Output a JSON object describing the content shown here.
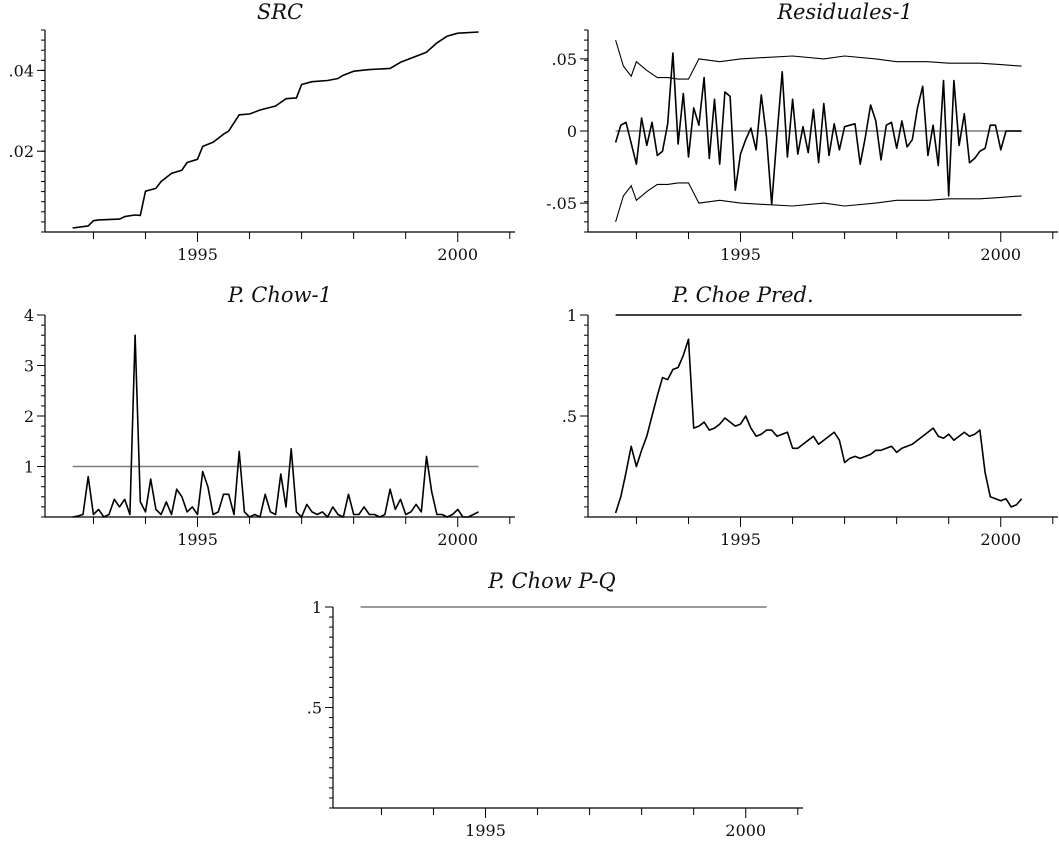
{
  "colors": {
    "series": "#000000",
    "reference": "#000000",
    "reference_gray": "#7a7a7a"
  },
  "chart_data": [
    {
      "type": "line",
      "title": "SRC",
      "xlabel": "",
      "ylabel": "",
      "xlim": [
        1992.3,
        2001.1
      ],
      "ylim": [
        0,
        0.05
      ],
      "x_ticks": [
        1995,
        2000
      ],
      "x_tick_labels": [
        "1995",
        "2000"
      ],
      "y_ticks": [
        0.02,
        0.04
      ],
      "y_tick_labels": [
        ".02",
        ".04"
      ],
      "series": [
        {
          "x": [
            1992.6,
            1992.9,
            1993.0,
            1993.1,
            1993.5,
            1993.6,
            1993.8,
            1993.9,
            1994.0,
            1994.2,
            1994.3,
            1994.5,
            1994.7,
            1994.8,
            1995.0,
            1995.1,
            1995.3,
            1995.5,
            1995.6,
            1995.8,
            1996.0,
            1996.2,
            1996.5,
            1996.7,
            1996.9,
            1997.0,
            1997.2,
            1997.5,
            1997.7,
            1997.8,
            1998.0,
            1998.3,
            1998.7,
            1998.9,
            1999.1,
            1999.4,
            1999.6,
            1999.8,
            2000.0,
            2000.4
          ],
          "y": [
            0.001,
            0.0015,
            0.0028,
            0.003,
            0.0032,
            0.0038,
            0.0042,
            0.0041,
            0.0101,
            0.0108,
            0.0125,
            0.0145,
            0.0153,
            0.0172,
            0.018,
            0.0212,
            0.0222,
            0.0242,
            0.025,
            0.029,
            0.0292,
            0.0302,
            0.0312,
            0.033,
            0.0332,
            0.0365,
            0.0372,
            0.0375,
            0.038,
            0.0388,
            0.0398,
            0.0402,
            0.0405,
            0.042,
            0.043,
            0.0445,
            0.0468,
            0.0485,
            0.0492,
            0.0495
          ]
        }
      ],
      "reference_lines": []
    },
    {
      "type": "line",
      "title": "Residuales-1",
      "xlabel": "",
      "ylabel": "",
      "xlim": [
        1992.3,
        2001.1
      ],
      "ylim": [
        -0.07,
        0.07
      ],
      "x_ticks": [
        1995,
        2000
      ],
      "x_tick_labels": [
        "1995",
        "2000"
      ],
      "y_ticks": [
        -0.05,
        0,
        0.05
      ],
      "y_tick_labels": [
        "-.05",
        "0",
        ".05"
      ],
      "series": [
        {
          "name": "residuals",
          "x": [
            1992.6,
            1992.7,
            1992.8,
            1993.0,
            1993.1,
            1993.2,
            1993.3,
            1993.4,
            1993.5,
            1993.6,
            1993.7,
            1993.8,
            1993.9,
            1994.0,
            1994.1,
            1994.2,
            1994.3,
            1994.4,
            1994.5,
            1994.6,
            1994.7,
            1994.8,
            1994.9,
            1995.0,
            1995.1,
            1995.2,
            1995.3,
            1995.4,
            1995.5,
            1995.6,
            1995.7,
            1995.8,
            1995.9,
            1996.0,
            1996.1,
            1996.2,
            1996.3,
            1996.4,
            1996.5,
            1996.6,
            1996.7,
            1996.8,
            1996.9,
            1997.0,
            1997.1,
            1997.2,
            1997.3,
            1997.4,
            1997.5,
            1997.6,
            1997.7,
            1997.8,
            1997.9,
            1998.0,
            1998.1,
            1998.2,
            1998.3,
            1998.4,
            1998.5,
            1998.6,
            1998.7,
            1998.8,
            1998.9,
            1999.0,
            1999.1,
            1999.2,
            1999.3,
            1999.4,
            1999.5,
            1999.6,
            1999.7,
            1999.8,
            1999.9,
            2000.0,
            2000.1,
            2000.2,
            2000.3,
            2000.4
          ],
          "y": [
            -0.008,
            0.004,
            0.006,
            -0.023,
            0.009,
            -0.01,
            0.006,
            -0.017,
            -0.014,
            0.005,
            0.054,
            -0.009,
            0.026,
            -0.018,
            0.016,
            0.004,
            0.037,
            -0.019,
            0.022,
            -0.023,
            0.027,
            0.024,
            -0.041,
            -0.016,
            -0.006,
            0.002,
            -0.013,
            0.025,
            -0.004,
            -0.051,
            -0.003,
            0.041,
            -0.018,
            0.022,
            -0.016,
            0.003,
            -0.015,
            0.015,
            -0.022,
            0.019,
            -0.017,
            0.005,
            -0.013,
            0.003,
            0.004,
            0.005,
            -0.023,
            -0.004,
            0.018,
            0.007,
            -0.02,
            0.004,
            0.006,
            -0.012,
            0.007,
            -0.011,
            -0.006,
            0.016,
            0.031,
            -0.017,
            0.004,
            -0.024,
            0.035,
            -0.045,
            0.035,
            -0.01,
            0.012,
            -0.022,
            -0.019,
            -0.014,
            -0.012,
            0.004,
            0.004,
            -0.013,
            0,
            0,
            0,
            0
          ],
          "line": "solid"
        },
        {
          "name": "upper band",
          "x": [
            1992.6,
            1992.75,
            1992.9,
            1993.0,
            1993.2,
            1993.4,
            1993.6,
            1993.8,
            1994.0,
            1994.2,
            1994.6,
            1995.0,
            1995.5,
            1996.0,
            1996.6,
            1997.0,
            1997.6,
            1998.0,
            1998.6,
            1999.0,
            1999.6,
            2000.0,
            2000.4
          ],
          "y": [
            0.063,
            0.045,
            0.038,
            0.048,
            0.042,
            0.037,
            0.037,
            0.036,
            0.036,
            0.05,
            0.048,
            0.05,
            0.051,
            0.052,
            0.05,
            0.052,
            0.05,
            0.048,
            0.048,
            0.047,
            0.047,
            0.046,
            0.045
          ],
          "line": "thin"
        },
        {
          "name": "lower band",
          "x": [
            1992.6,
            1992.75,
            1992.9,
            1993.0,
            1993.2,
            1993.4,
            1993.6,
            1993.8,
            1994.0,
            1994.2,
            1994.6,
            1995.0,
            1995.5,
            1996.0,
            1996.6,
            1997.0,
            1997.6,
            1998.0,
            1998.6,
            1999.0,
            1999.6,
            2000.0,
            2000.4
          ],
          "y": [
            -0.063,
            -0.045,
            -0.038,
            -0.048,
            -0.042,
            -0.037,
            -0.037,
            -0.036,
            -0.036,
            -0.05,
            -0.048,
            -0.05,
            -0.051,
            -0.052,
            -0.05,
            -0.052,
            -0.05,
            -0.048,
            -0.048,
            -0.047,
            -0.047,
            -0.046,
            -0.045
          ],
          "line": "thin"
        }
      ],
      "reference_lines": [
        {
          "y": 0,
          "color": "reference_gray"
        }
      ]
    },
    {
      "type": "line",
      "title": "P. Chow-1",
      "xlabel": "",
      "ylabel": "",
      "xlim": [
        1992.3,
        2001.1
      ],
      "ylim": [
        0,
        4
      ],
      "x_ticks": [
        1995,
        2000
      ],
      "x_tick_labels": [
        "1995",
        "2000"
      ],
      "y_ticks": [
        1,
        2,
        3,
        4
      ],
      "y_tick_labels": [
        "1",
        "2",
        "3",
        "4"
      ],
      "series": [
        {
          "x": [
            1992.6,
            1992.7,
            1992.8,
            1992.9,
            1993.0,
            1993.1,
            1993.2,
            1993.3,
            1993.4,
            1993.5,
            1993.6,
            1993.7,
            1993.8,
            1993.9,
            1994.0,
            1994.1,
            1994.2,
            1994.3,
            1994.4,
            1994.5,
            1994.6,
            1994.7,
            1994.8,
            1994.9,
            1995.0,
            1995.1,
            1995.2,
            1995.3,
            1995.4,
            1995.5,
            1995.6,
            1995.7,
            1995.8,
            1995.9,
            1996.0,
            1996.1,
            1996.2,
            1996.3,
            1996.4,
            1996.5,
            1996.6,
            1996.7,
            1996.8,
            1996.9,
            1997.0,
            1997.1,
            1997.2,
            1997.3,
            1997.4,
            1997.5,
            1997.6,
            1997.7,
            1997.8,
            1997.9,
            1998.0,
            1998.1,
            1998.2,
            1998.3,
            1998.4,
            1998.5,
            1998.6,
            1998.7,
            1998.8,
            1998.9,
            1999.0,
            1999.1,
            1999.2,
            1999.3,
            1999.4,
            1999.5,
            1999.6,
            1999.7,
            1999.8,
            1999.9,
            2000.0,
            2000.1,
            2000.2,
            2000.3,
            2000.4
          ],
          "y": [
            0.0,
            0.02,
            0.05,
            0.8,
            0.05,
            0.15,
            0.0,
            0.05,
            0.35,
            0.2,
            0.35,
            0.05,
            3.6,
            0.3,
            0.1,
            0.75,
            0.15,
            0.05,
            0.3,
            0.05,
            0.55,
            0.4,
            0.1,
            0.2,
            0.05,
            0.9,
            0.6,
            0.05,
            0.1,
            0.45,
            0.45,
            0.05,
            1.3,
            0.1,
            0.0,
            0.05,
            0.0,
            0.45,
            0.1,
            0.05,
            0.85,
            0.2,
            1.35,
            0.1,
            0.0,
            0.25,
            0.1,
            0.05,
            0.1,
            0.0,
            0.2,
            0.05,
            0.0,
            0.45,
            0.05,
            0.05,
            0.2,
            0.05,
            0.05,
            0.0,
            0.05,
            0.55,
            0.15,
            0.35,
            0.05,
            0.1,
            0.25,
            0.1,
            1.2,
            0.5,
            0.05,
            0.05,
            0.0,
            0.05,
            0.15,
            0.0,
            0.0,
            0.05,
            0.1
          ]
        }
      ],
      "reference_lines": [
        {
          "y": 1,
          "color": "reference_gray"
        }
      ]
    },
    {
      "type": "line",
      "title": "P. Choe Pred.",
      "xlabel": "",
      "ylabel": "",
      "xlim": [
        1992.3,
        2001.1
      ],
      "ylim": [
        0,
        1
      ],
      "x_ticks": [
        1995,
        2000
      ],
      "x_tick_labels": [
        "1995",
        "2000"
      ],
      "y_ticks": [
        0.5,
        1
      ],
      "y_tick_labels": [
        ".5",
        "1"
      ],
      "series": [
        {
          "x": [
            1992.6,
            1992.7,
            1992.8,
            1992.9,
            1993.0,
            1993.1,
            1993.2,
            1993.3,
            1993.4,
            1993.5,
            1993.6,
            1993.7,
            1993.8,
            1993.9,
            1994.0,
            1994.1,
            1994.2,
            1994.3,
            1994.4,
            1994.5,
            1994.6,
            1994.7,
            1994.8,
            1994.9,
            1995.0,
            1995.1,
            1995.2,
            1995.3,
            1995.4,
            1995.5,
            1995.6,
            1995.7,
            1995.8,
            1995.9,
            1996.0,
            1996.1,
            1996.2,
            1996.3,
            1996.4,
            1996.5,
            1996.6,
            1996.7,
            1996.8,
            1996.9,
            1997.0,
            1997.1,
            1997.2,
            1997.3,
            1997.4,
            1997.5,
            1997.6,
            1997.7,
            1997.8,
            1997.9,
            1998.0,
            1998.1,
            1998.2,
            1998.3,
            1998.4,
            1998.5,
            1998.6,
            1998.7,
            1998.8,
            1998.9,
            1999.0,
            1999.1,
            1999.2,
            1999.3,
            1999.4,
            1999.5,
            1999.6,
            1999.7,
            1999.8,
            1999.9,
            2000.0,
            2000.1,
            2000.2,
            2000.3,
            2000.4
          ],
          "y": [
            0.02,
            0.1,
            0.22,
            0.35,
            0.25,
            0.33,
            0.4,
            0.5,
            0.6,
            0.69,
            0.68,
            0.73,
            0.74,
            0.8,
            0.88,
            0.44,
            0.45,
            0.47,
            0.43,
            0.44,
            0.46,
            0.49,
            0.47,
            0.45,
            0.46,
            0.5,
            0.44,
            0.4,
            0.41,
            0.43,
            0.43,
            0.4,
            0.41,
            0.42,
            0.34,
            0.34,
            0.36,
            0.38,
            0.4,
            0.36,
            0.38,
            0.4,
            0.42,
            0.38,
            0.27,
            0.29,
            0.3,
            0.29,
            0.3,
            0.31,
            0.33,
            0.33,
            0.34,
            0.35,
            0.32,
            0.34,
            0.35,
            0.36,
            0.38,
            0.4,
            0.42,
            0.44,
            0.4,
            0.39,
            0.41,
            0.38,
            0.4,
            0.42,
            0.4,
            0.41,
            0.43,
            0.22,
            0.1,
            0.09,
            0.08,
            0.09,
            0.05,
            0.06,
            0.09
          ]
        }
      ],
      "reference_lines": [
        {
          "y": 1,
          "color": "reference"
        }
      ]
    },
    {
      "type": "line",
      "title": "P. Chow P-Q",
      "xlabel": "",
      "ylabel": "",
      "xlim": [
        1992.3,
        2001.1
      ],
      "ylim": [
        0,
        1
      ],
      "x_ticks": [
        1995,
        2000
      ],
      "x_tick_labels": [
        "1995",
        "2000"
      ],
      "y_ticks": [
        0.5,
        1
      ],
      "y_tick_labels": [
        ".5",
        "1"
      ],
      "series": [],
      "reference_lines": [
        {
          "y": 1,
          "color": "reference_gray"
        }
      ]
    }
  ]
}
